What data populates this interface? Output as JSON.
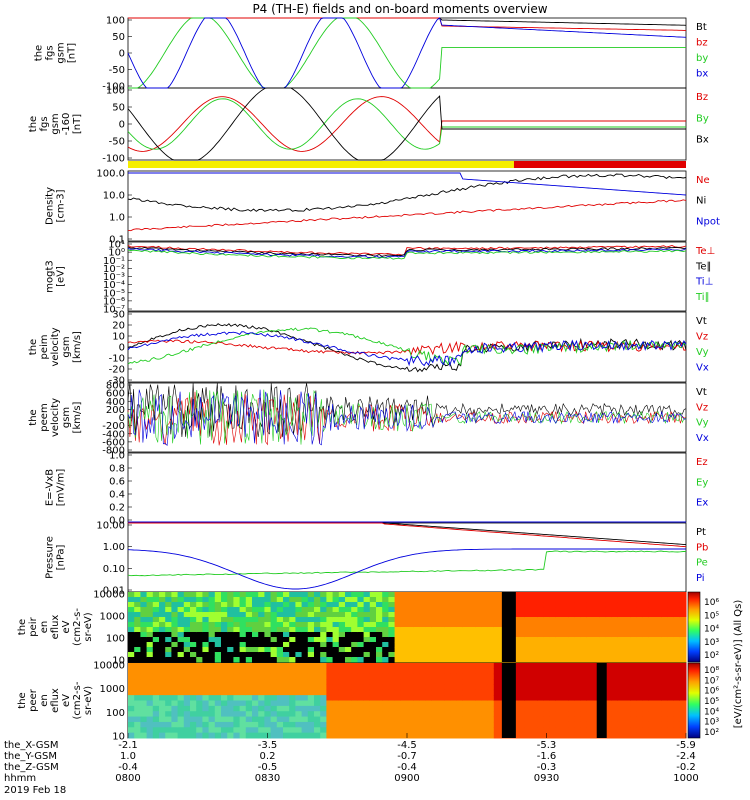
{
  "title": "P4 (TH-E) fields and on-board moments overview",
  "colors": {
    "black": "#000000",
    "red": "#e00000",
    "green": "#22cc22",
    "blue": "#0000dd",
    "yellow": "#f5ee00"
  },
  "chart_data": [
    {
      "type": "line",
      "panel": "fgs_gsm",
      "ylabel": [
        "the",
        "fgs",
        "gsm",
        "[nT]"
      ],
      "ylim": [
        -100,
        100
      ],
      "yticks": [
        "100",
        "50",
        "0",
        "-50",
        "-100"
      ],
      "series": [
        {
          "name": "Bt",
          "color": "black"
        },
        {
          "name": "bz",
          "color": "red"
        },
        {
          "name": "by",
          "color": "green"
        },
        {
          "name": "bx",
          "color": "blue"
        }
      ]
    },
    {
      "type": "line",
      "panel": "fgs_gsm_clipped",
      "ylabel": [
        "the",
        "fgs",
        "gsm",
        "-160",
        "[nT]"
      ],
      "ylim": [
        -120,
        120
      ],
      "yticks": [
        "100",
        "50",
        "0",
        "-50",
        "-100"
      ],
      "series": [
        {
          "name": "Bz",
          "color": "red"
        },
        {
          "name": "By",
          "color": "green"
        },
        {
          "name": "Bx",
          "color": "black"
        }
      ]
    },
    {
      "type": "bar",
      "panel": "mode_bar",
      "segments": [
        {
          "from": "0800",
          "to": "0923",
          "color": "yellow"
        },
        {
          "from": "0923",
          "to": "1000",
          "color": "red"
        }
      ]
    },
    {
      "type": "line",
      "panel": "density",
      "ylabel": [
        "Density",
        "[cm-3]"
      ],
      "scale": "log",
      "yticks": [
        "100.0",
        "10.0",
        "1.0",
        "0.1"
      ],
      "series": [
        {
          "name": "Ne",
          "color": "red"
        },
        {
          "name": "Ni",
          "color": "black"
        },
        {
          "name": "Npot",
          "color": "blue"
        }
      ]
    },
    {
      "type": "line",
      "panel": "temperature",
      "ylabel": [
        "mogt3",
        "[eV]"
      ],
      "scale": "log",
      "yticks": [
        "10¹",
        "10⁰",
        "10⁻¹",
        "10⁻²",
        "10⁻³",
        "10⁻⁴",
        "10⁻⁵",
        "10⁻⁶",
        "10⁻⁷"
      ],
      "series": [
        {
          "name": "Te⊥",
          "color": "red"
        },
        {
          "name": "Te∥",
          "color": "black"
        },
        {
          "name": "Ti⊥",
          "color": "blue"
        },
        {
          "name": "Ti∥",
          "color": "green"
        }
      ]
    },
    {
      "type": "line",
      "panel": "peim_velocity",
      "ylabel": [
        "the",
        "peim",
        "velocity",
        "gsm",
        "[km/s]"
      ],
      "ylim": [
        -30,
        30
      ],
      "yticks": [
        "30",
        "20",
        "10",
        "0",
        "-10",
        "-20",
        "-30"
      ],
      "series": [
        {
          "name": "Vt",
          "color": "black"
        },
        {
          "name": "Vz",
          "color": "red"
        },
        {
          "name": "Vy",
          "color": "green"
        },
        {
          "name": "Vx",
          "color": "blue"
        }
      ]
    },
    {
      "type": "line",
      "panel": "peem_velocity",
      "ylabel": [
        "the",
        "peem",
        "velocity",
        "gsm",
        "[km/s]"
      ],
      "ylim": [
        -800,
        800
      ],
      "yticks": [
        "800",
        "600",
        "400",
        "200",
        "0",
        "-200",
        "-400",
        "-600",
        "-800"
      ],
      "series": [
        {
          "name": "Vt",
          "color": "black"
        },
        {
          "name": "Vz",
          "color": "red"
        },
        {
          "name": "Vy",
          "color": "green"
        },
        {
          "name": "Vx",
          "color": "blue"
        }
      ]
    },
    {
      "type": "line",
      "panel": "efield",
      "ylabel": [
        "E=-VxB",
        "[mV/m]"
      ],
      "ylim": [
        0,
        1
      ],
      "yticks": [
        "1.0",
        "0.8",
        "0.6",
        "0.4",
        "0.2",
        "0.0"
      ],
      "series": [
        {
          "name": "Ez",
          "color": "red"
        },
        {
          "name": "Ey",
          "color": "green"
        },
        {
          "name": "Ex",
          "color": "blue"
        }
      ]
    },
    {
      "type": "line",
      "panel": "pressure",
      "ylabel": [
        "Pressure",
        "[nPa]"
      ],
      "scale": "log",
      "yticks": [
        "10.00",
        "1.00",
        "0.10",
        "0.01"
      ],
      "series": [
        {
          "name": "Pt",
          "color": "black"
        },
        {
          "name": "Pb",
          "color": "red"
        },
        {
          "name": "Pe",
          "color": "green"
        },
        {
          "name": "Pi",
          "color": "blue"
        }
      ]
    },
    {
      "type": "heatmap",
      "panel": "peir_spectrogram",
      "ylabel": [
        "the",
        "peir",
        "en",
        "eflux",
        "eV",
        "(cm2-s-",
        "sr-eV)"
      ],
      "scale": "log",
      "yticks": [
        "10000",
        "1000",
        "100",
        "10"
      ]
    },
    {
      "type": "heatmap",
      "panel": "peer_spectrogram",
      "ylabel": [
        "the",
        "peer",
        "en",
        "eflux",
        "eV",
        "(cm2-s-",
        "sr-eV)"
      ],
      "scale": "log",
      "yticks": [
        "10000",
        "1000",
        "100",
        "10"
      ]
    }
  ],
  "colorbar": {
    "label": "[eV/(cm²-s-sr-eV)] (All Qs)",
    "ticks_top": [
      "10⁶",
      "10⁵",
      "10⁴",
      "10³",
      "10²"
    ],
    "ticks_bottom": [
      "10⁸",
      "10⁷",
      "10⁶",
      "10⁵",
      "10⁴",
      "10³",
      "10²"
    ]
  },
  "xaxis": {
    "ticks": [
      {
        "the_x": "-2.1",
        "the_y": "1.0",
        "the_z": "-0.4",
        "hhmm": "0800"
      },
      {
        "the_x": "-3.5",
        "the_y": "0.2",
        "the_z": "-0.5",
        "hhmm": "0830"
      },
      {
        "the_x": "-4.5",
        "the_y": "-0.7",
        "the_z": "-0.4",
        "hhmm": "0900"
      },
      {
        "the_x": "-5.3",
        "the_y": "-1.6",
        "the_z": "-0.3",
        "hhmm": "0930"
      },
      {
        "the_x": "-5.9",
        "the_y": "-2.4",
        "the_z": "-0.2",
        "hhmm": "1000"
      }
    ],
    "row_labels": {
      "the_x": "the_X-GSM",
      "the_y": "the_Y-GSM",
      "the_z": "the_Z-GSM",
      "hhmm": "hhmm"
    },
    "date": "2019 Feb 18"
  }
}
